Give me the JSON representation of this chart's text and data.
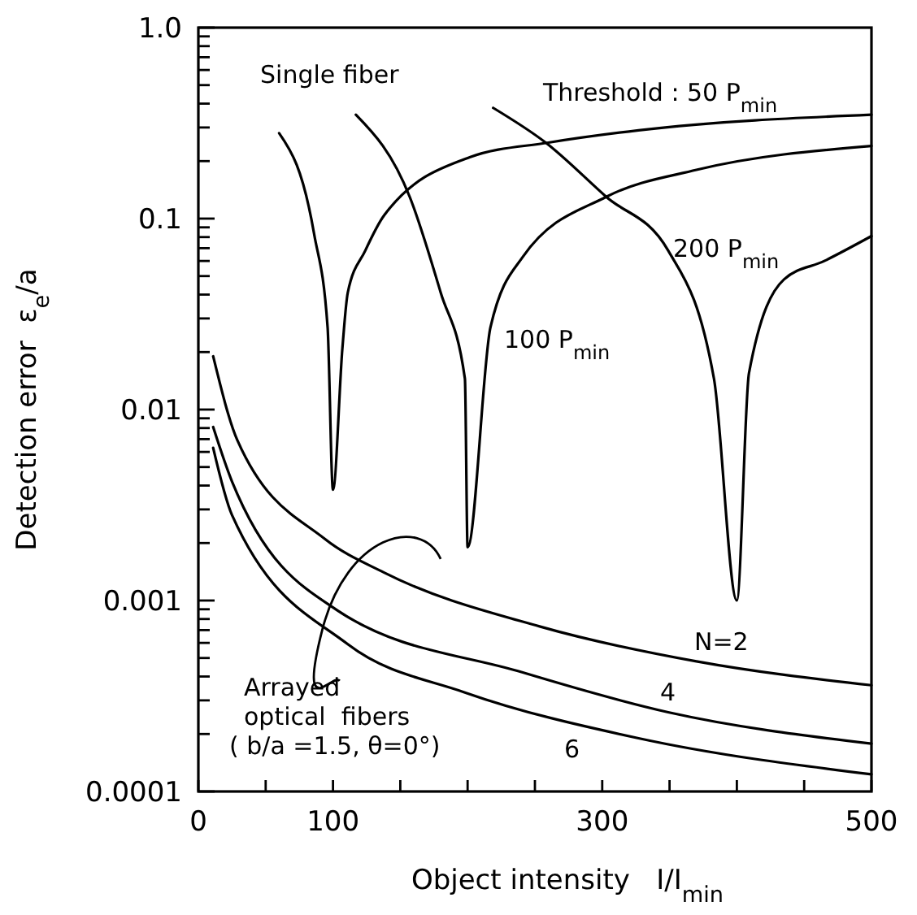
{
  "chart_data": {
    "type": "line",
    "xlabel": "Object intensity   I/I$_{min}$",
    "ylabel": "Detection error  ε$_{e}$/a",
    "log": "y",
    "grid": false,
    "line_style": "solid",
    "xlim": [
      0,
      500
    ],
    "xticks": [
      0,
      {
        "value": 50,
        "label": null
      },
      100,
      {
        "value": 150,
        "label": null
      },
      {
        "value": 200,
        "label": null
      },
      {
        "value": 250,
        "label": null
      },
      300,
      {
        "value": 350,
        "label": null
      },
      {
        "value": 400,
        "label": null
      },
      {
        "value": 450,
        "label": null
      },
      500
    ],
    "ylim": [
      0.0001,
      1
    ],
    "yticks": [
      {
        "value": 0.0001,
        "label": "0.0001"
      },
      {
        "value": 0.0002,
        "label": null
      },
      {
        "value": 0.0003,
        "label": null
      },
      {
        "value": 0.0004,
        "label": null
      },
      {
        "value": 0.0005,
        "label": null
      },
      {
        "value": 0.0006,
        "label": null
      },
      {
        "value": 0.0007,
        "label": null
      },
      {
        "value": 0.0008,
        "label": null
      },
      {
        "value": 0.0009,
        "label": null
      },
      {
        "value": 0.001,
        "label": "0.001"
      },
      {
        "value": 0.002,
        "label": null
      },
      {
        "value": 0.003,
        "label": null
      },
      {
        "value": 0.004,
        "label": null
      },
      {
        "value": 0.005,
        "label": null
      },
      {
        "value": 0.006,
        "label": null
      },
      {
        "value": 0.007,
        "label": null
      },
      {
        "value": 0.008,
        "label": null
      },
      {
        "value": 0.009,
        "label": null
      },
      {
        "value": 0.01,
        "label": "0.01"
      },
      {
        "value": 0.02,
        "label": null
      },
      {
        "value": 0.03,
        "label": null
      },
      {
        "value": 0.04,
        "label": null
      },
      {
        "value": 0.05,
        "label": null
      },
      {
        "value": 0.06,
        "label": null
      },
      {
        "value": 0.07,
        "label": null
      },
      {
        "value": 0.08,
        "label": null
      },
      {
        "value": 0.09,
        "label": null
      },
      {
        "value": 0.1,
        "label": "0.1"
      },
      {
        "value": 0.2,
        "label": null
      },
      {
        "value": 0.3,
        "label": null
      },
      {
        "value": 0.4,
        "label": null
      },
      {
        "value": 0.5,
        "label": null
      },
      {
        "value": 0.6,
        "label": null
      },
      {
        "value": 0.7,
        "label": null
      },
      {
        "value": 0.8,
        "label": null
      },
      {
        "value": 0.9,
        "label": null
      },
      {
        "value": 1,
        "label": "1.0"
      }
    ],
    "series": [
      {
        "color": "#000000",
        "x": [
          60,
          86,
          96,
          100,
          107,
          111,
          124,
          138,
          202,
          260,
          327,
          500
        ],
        "values": [
          0.28,
          0.083,
          0.027,
          0.0038,
          0.021,
          0.041,
          0.068,
          0.104,
          0.21,
          0.25,
          0.29,
          0.35
        ]
      },
      {
        "color": "#000000",
        "x": [
          117,
          157,
          180,
          198,
          200,
          217,
          241,
          303,
          370,
          500
        ],
        "values": [
          0.35,
          0.13,
          0.041,
          0.0145,
          0.0019,
          0.027,
          0.063,
          0.13,
          0.18,
          0.24
        ]
      },
      {
        "color": "#000000",
        "x": [
          219,
          258,
          303,
          349,
          383,
          400,
          409,
          435,
          465,
          500
        ],
        "values": [
          0.38,
          0.25,
          0.13,
          0.068,
          0.0145,
          0.001,
          0.0155,
          0.048,
          0.06,
          0.081
        ]
      },
      {
        "color": "#000000",
        "x": [
          11,
          29,
          94,
          138,
          254,
          370,
          500
        ],
        "values": [
          0.019,
          0.0069,
          0.0021,
          0.0014,
          0.00073,
          0.00048,
          0.00036
        ]
      },
      {
        "color": "#000000",
        "x": [
          11,
          25,
          103,
          241,
          349,
          500
        ],
        "values": [
          0.0081,
          0.0042,
          0.00089,
          0.00042,
          0.00026,
          0.000178
        ]
      },
      {
        "color": "#000000",
        "x": [
          11,
          25,
          111,
          198,
          327,
          500
        ],
        "values": [
          0.0063,
          0.0028,
          0.00059,
          0.00033,
          0.00019,
          0.000123
        ]
      }
    ],
    "annotations": [
      "Single fiber",
      "Threshold : 50 P$_{min}$",
      "200 P$_{min}$",
      "100 P$_{min}$",
      "N=2",
      "4",
      "6",
      "Arrayed\noptical  fibers\n( b/a =1.5, θ=0°)"
    ]
  }
}
